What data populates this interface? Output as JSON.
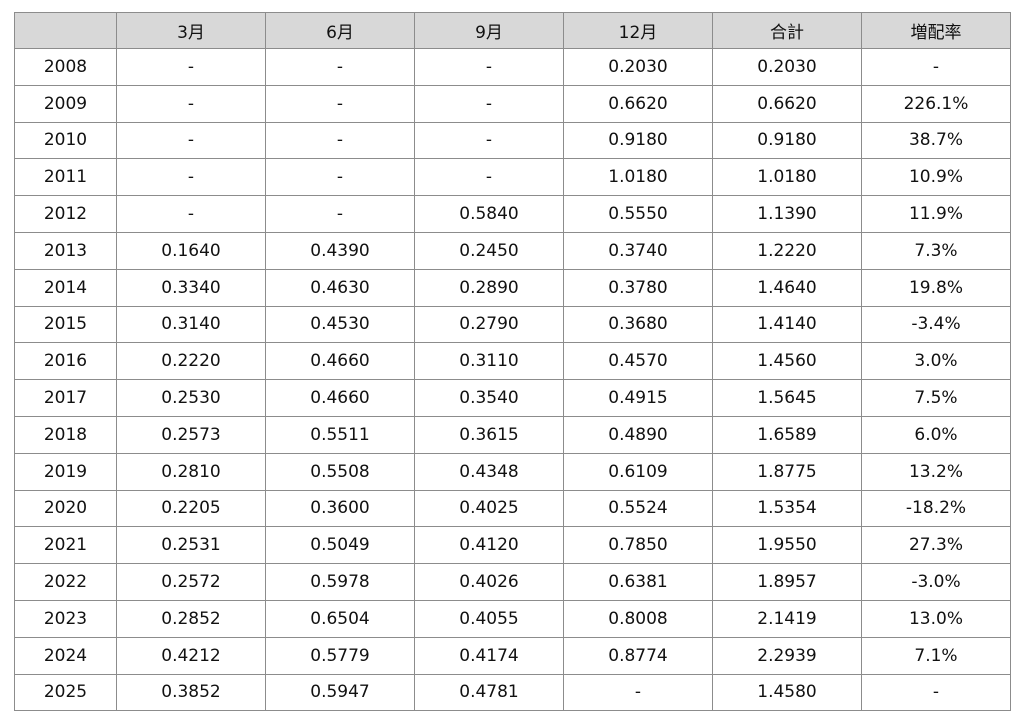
{
  "table": {
    "headers": [
      "",
      "3月",
      "6月",
      "9月",
      "12月",
      "合計",
      "増配率"
    ],
    "rows": [
      [
        "2008",
        "-",
        "-",
        "-",
        "0.2030",
        "0.2030",
        "-"
      ],
      [
        "2009",
        "-",
        "-",
        "-",
        "0.6620",
        "0.6620",
        "226.1%"
      ],
      [
        "2010",
        "-",
        "-",
        "-",
        "0.9180",
        "0.9180",
        "38.7%"
      ],
      [
        "2011",
        "-",
        "-",
        "-",
        "1.0180",
        "1.0180",
        "10.9%"
      ],
      [
        "2012",
        "-",
        "-",
        "0.5840",
        "0.5550",
        "1.1390",
        "11.9%"
      ],
      [
        "2013",
        "0.1640",
        "0.4390",
        "0.2450",
        "0.3740",
        "1.2220",
        "7.3%"
      ],
      [
        "2014",
        "0.3340",
        "0.4630",
        "0.2890",
        "0.3780",
        "1.4640",
        "19.8%"
      ],
      [
        "2015",
        "0.3140",
        "0.4530",
        "0.2790",
        "0.3680",
        "1.4140",
        "-3.4%"
      ],
      [
        "2016",
        "0.2220",
        "0.4660",
        "0.3110",
        "0.4570",
        "1.4560",
        "3.0%"
      ],
      [
        "2017",
        "0.2530",
        "0.4660",
        "0.3540",
        "0.4915",
        "1.5645",
        "7.5%"
      ],
      [
        "2018",
        "0.2573",
        "0.5511",
        "0.3615",
        "0.4890",
        "1.6589",
        "6.0%"
      ],
      [
        "2019",
        "0.2810",
        "0.5508",
        "0.4348",
        "0.6109",
        "1.8775",
        "13.2%"
      ],
      [
        "2020",
        "0.2205",
        "0.3600",
        "0.4025",
        "0.5524",
        "1.5354",
        "-18.2%"
      ],
      [
        "2021",
        "0.2531",
        "0.5049",
        "0.4120",
        "0.7850",
        "1.9550",
        "27.3%"
      ],
      [
        "2022",
        "0.2572",
        "0.5978",
        "0.4026",
        "0.6381",
        "1.8957",
        "-3.0%"
      ],
      [
        "2023",
        "0.2852",
        "0.6504",
        "0.4055",
        "0.8008",
        "2.1419",
        "13.0%"
      ],
      [
        "2024",
        "0.4212",
        "0.5779",
        "0.4174",
        "0.8774",
        "2.2939",
        "7.1%"
      ],
      [
        "2025",
        "0.3852",
        "0.5947",
        "0.4781",
        "-",
        "1.4580",
        "-"
      ]
    ]
  }
}
